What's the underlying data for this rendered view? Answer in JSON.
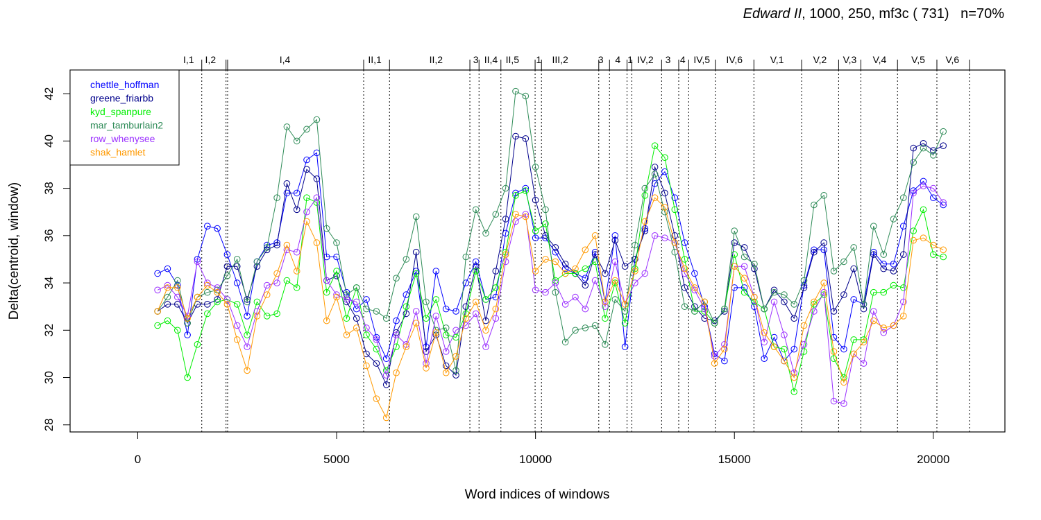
{
  "chart_data": {
    "type": "line",
    "title_italic": "Edward II",
    "title_rest": ", 1000, 250, mf3c ( 731)   n=70%",
    "xlabel": "Word indices of windows",
    "ylabel": "Delta(centroid, window)",
    "xlim": [
      -1700,
      21800
    ],
    "ylim": [
      27.7,
      43.0
    ],
    "xticks": [
      0,
      5000,
      10000,
      15000,
      20000
    ],
    "yticks": [
      28,
      30,
      32,
      34,
      36,
      38,
      40,
      42
    ],
    "grid": false,
    "legend_placement": "top-left",
    "scene_boundaries": [
      1610,
      2220,
      2260,
      5680,
      6330,
      8350,
      8580,
      9130,
      9990,
      10150,
      11590,
      11860,
      12300,
      12420,
      13170,
      13600,
      13850,
      14520,
      15490,
      16690,
      17620,
      18180,
      19100,
      20090,
      20910
    ],
    "scene_labels": [
      {
        "label": "I,1",
        "x": 1280
      },
      {
        "label": "I,2",
        "x": 1830
      },
      {
        "label": "I,4",
        "x": 3700
      },
      {
        "label": "II,1",
        "x": 5960
      },
      {
        "label": "II,2",
        "x": 7500
      },
      {
        "label": "3",
        "x": 8500
      },
      {
        "label": "II,4",
        "x": 8880
      },
      {
        "label": "II,5",
        "x": 9420
      },
      {
        "label": "1",
        "x": 10080
      },
      {
        "label": "III,2",
        "x": 10620
      },
      {
        "label": "3",
        "x": 11640
      },
      {
        "label": "4",
        "x": 12070
      },
      {
        "label": "1",
        "x": 12380
      },
      {
        "label": "IV,2",
        "x": 12760
      },
      {
        "label": "3",
        "x": 13330
      },
      {
        "label": "4",
        "x": 13700
      },
      {
        "label": "IV,5",
        "x": 14180
      },
      {
        "label": "IV,6",
        "x": 15000
      },
      {
        "label": "V,1",
        "x": 16070
      },
      {
        "label": "V,2",
        "x": 17150
      },
      {
        "label": "V,3",
        "x": 17900
      },
      {
        "label": "V,4",
        "x": 18650
      },
      {
        "label": "V,5",
        "x": 19620
      },
      {
        "label": "V,6",
        "x": 20480
      }
    ],
    "x": [
      500,
      750,
      1000,
      1250,
      1500,
      1750,
      2000,
      2250,
      2500,
      2750,
      3000,
      3250,
      3500,
      3750,
      4000,
      4250,
      4500,
      4750,
      5000,
      5250,
      5500,
      5750,
      6000,
      6250,
      6500,
      6750,
      7000,
      7250,
      7500,
      7750,
      8000,
      8250,
      8500,
      8750,
      9000,
      9250,
      9500,
      9750,
      10000,
      10250,
      10500,
      10750,
      11000,
      11250,
      11500,
      11750,
      12000,
      12250,
      12500,
      12750,
      13000,
      13250,
      13500,
      13750,
      14000,
      14250,
      14500,
      14750,
      15000,
      15250,
      15500,
      15750,
      16000,
      16250,
      16500,
      16750,
      17000,
      17250,
      17500,
      17750,
      18000,
      18250,
      18500,
      18750,
      19000,
      19250,
      19500,
      19750,
      20000,
      20250
    ],
    "series": [
      {
        "name": "chettle_hoffman",
        "color": "#0000ff",
        "values": [
          34.4,
          34.6,
          33.9,
          31.8,
          35.0,
          36.4,
          36.3,
          35.2,
          34.0,
          32.6,
          34.9,
          35.6,
          35.7,
          37.8,
          37.8,
          39.2,
          39.5,
          35.1,
          35.1,
          33.6,
          32.9,
          33.3,
          31.7,
          30.8,
          32.4,
          33.5,
          34.5,
          31.3,
          34.5,
          32.9,
          32.8,
          34.0,
          34.9,
          33.3,
          33.4,
          36.1,
          37.8,
          38.0,
          35.9,
          35.9,
          35.3,
          34.6,
          34.4,
          34.2,
          35.3,
          33.2,
          36.0,
          31.3,
          35.0,
          36.3,
          38.2,
          38.7,
          37.6,
          35.7,
          34.4,
          33.0,
          31.0,
          30.7,
          33.8,
          33.8,
          33.0,
          30.8,
          31.7,
          30.7,
          31.2,
          33.9,
          35.4,
          35.4,
          31.7,
          31.2,
          33.3,
          33.1,
          35.3,
          34.8,
          34.8,
          36.4,
          37.9,
          38.3,
          37.6,
          37.3
        ]
      },
      {
        "name": "greene_friarbb",
        "color": "#00008b",
        "values": [
          32.8,
          33.1,
          33.1,
          32.3,
          33.1,
          33.1,
          33.3,
          34.7,
          34.7,
          33.3,
          34.7,
          35.4,
          35.6,
          38.2,
          37.1,
          38.8,
          38.4,
          34.1,
          34.3,
          33.2,
          32.5,
          31.0,
          30.6,
          29.7,
          31.9,
          32.7,
          35.3,
          31.1,
          31.8,
          30.5,
          30.1,
          33.0,
          34.7,
          32.4,
          34.5,
          36.7,
          40.2,
          40.1,
          37.5,
          36.0,
          35.5,
          34.8,
          34.4,
          33.9,
          35.2,
          34.4,
          35.8,
          34.7,
          35.0,
          36.2,
          38.9,
          37.8,
          36.0,
          33.8,
          33.0,
          32.5,
          32.4,
          32.8,
          35.7,
          35.5,
          34.6,
          32.9,
          33.7,
          33.2,
          32.5,
          33.8,
          35.3,
          35.7,
          32.8,
          33.5,
          34.6,
          32.9,
          35.2,
          34.6,
          34.5,
          35.2,
          39.7,
          39.9,
          39.6,
          39.8
        ]
      },
      {
        "name": "kyd_spanpure",
        "color": "#00ee00",
        "values": [
          32.2,
          32.4,
          32.0,
          30.0,
          31.4,
          32.7,
          33.2,
          33.3,
          33.1,
          31.8,
          33.2,
          32.6,
          32.7,
          34.1,
          33.8,
          37.6,
          37.4,
          33.6,
          34.5,
          32.5,
          33.8,
          31.8,
          31.2,
          30.3,
          31.3,
          33.0,
          34.4,
          32.5,
          33.3,
          31.8,
          31.7,
          32.7,
          34.5,
          33.3,
          33.8,
          35.3,
          37.7,
          37.9,
          36.2,
          36.5,
          34.1,
          34.4,
          34.4,
          34.6,
          34.9,
          32.5,
          34.0,
          32.3,
          34.6,
          37.7,
          39.8,
          39.3,
          37.1,
          35.0,
          32.8,
          32.8,
          32.3,
          32.9,
          35.2,
          33.6,
          33.2,
          32.9,
          31.3,
          31.2,
          29.4,
          31.1,
          33.1,
          33.5,
          30.8,
          30.0,
          31.6,
          31.6,
          33.6,
          33.6,
          33.9,
          33.8,
          36.2,
          37.1,
          35.2,
          35.1
        ]
      },
      {
        "name": "mar_tamburlain2",
        "color": "#2e8b57",
        "values": [
          32.8,
          33.4,
          34.1,
          32.3,
          33.4,
          33.6,
          33.7,
          34.3,
          35.0,
          33.2,
          34.9,
          35.5,
          37.6,
          40.6,
          40.0,
          40.5,
          40.9,
          36.3,
          35.7,
          33.5,
          33.8,
          32.9,
          32.8,
          32.5,
          34.2,
          35.0,
          36.8,
          33.2,
          32.0,
          32.1,
          30.3,
          35.1,
          37.1,
          36.1,
          36.9,
          38.0,
          42.1,
          41.9,
          38.9,
          37.1,
          33.6,
          31.5,
          32.0,
          32.1,
          32.2,
          31.4,
          33.3,
          32.8,
          35.6,
          38.0,
          38.6,
          37.0,
          35.3,
          33.0,
          32.8,
          33.2,
          32.3,
          32.9,
          36.2,
          35.1,
          34.8,
          32.9,
          33.6,
          33.5,
          33.1,
          34.1,
          37.3,
          37.7,
          34.5,
          34.9,
          35.5,
          33.1,
          36.4,
          35.2,
          36.7,
          37.6,
          39.1,
          39.7,
          39.4,
          40.4
        ]
      },
      {
        "name": "row_whenysee",
        "color": "#9b30ff",
        "values": [
          33.7,
          33.9,
          33.4,
          32.6,
          34.9,
          34.0,
          33.8,
          33.3,
          32.2,
          31.3,
          32.8,
          33.9,
          34.0,
          35.4,
          35.3,
          37.0,
          37.6,
          34.1,
          33.5,
          33.3,
          33.2,
          32.1,
          31.6,
          30.1,
          31.8,
          31.4,
          32.8,
          30.6,
          32.6,
          31.1,
          32.0,
          32.2,
          32.7,
          31.3,
          32.5,
          34.9,
          36.6,
          36.9,
          33.7,
          33.6,
          34.0,
          33.1,
          33.4,
          32.9,
          34.1,
          33.0,
          34.9,
          33.1,
          34.0,
          34.4,
          36.0,
          35.9,
          35.7,
          34.4,
          33.7,
          32.9,
          30.9,
          31.4,
          34.7,
          34.7,
          33.4,
          31.5,
          33.2,
          31.8,
          30.2,
          31.4,
          32.8,
          33.6,
          29.0,
          28.9,
          31.0,
          30.6,
          32.8,
          31.9,
          32.2,
          33.2,
          37.8,
          38.1,
          38.0,
          37.4
        ]
      },
      {
        "name": "shak_hamlet",
        "color": "#ff9900",
        "values": [
          32.8,
          33.8,
          33.8,
          32.5,
          33.4,
          33.9,
          33.6,
          33.1,
          31.6,
          30.3,
          32.6,
          33.5,
          34.4,
          35.6,
          34.5,
          36.6,
          35.7,
          32.4,
          33.4,
          31.8,
          32.1,
          30.5,
          29.1,
          28.3,
          30.2,
          31.3,
          32.3,
          30.4,
          31.9,
          30.2,
          30.9,
          32.5,
          33.2,
          32.0,
          32.9,
          35.2,
          36.9,
          36.8,
          34.5,
          35.0,
          34.9,
          34.4,
          34.6,
          35.4,
          36.0,
          33.2,
          34.1,
          33.1,
          34.5,
          36.6,
          37.6,
          37.2,
          35.7,
          34.6,
          33.8,
          33.2,
          30.6,
          31.2,
          34.7,
          34.2,
          33.4,
          31.9,
          31.3,
          30.7,
          30.0,
          32.2,
          33.2,
          34.0,
          31.1,
          29.8,
          31.0,
          31.5,
          32.4,
          32.1,
          32.2,
          32.6,
          35.8,
          35.9,
          35.6,
          35.4
        ]
      }
    ]
  }
}
